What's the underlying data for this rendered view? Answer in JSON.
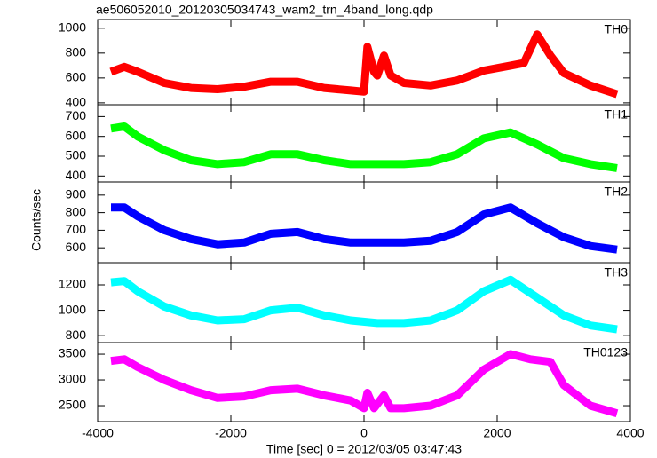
{
  "chart_data": [
    {
      "type": "line",
      "title": "ae506052010_20120305034743_wam2_trn_4band_long.qdp",
      "x": [
        -3800,
        -3600,
        -3400,
        -3000,
        -2600,
        -2200,
        -1800,
        -1400,
        -1000,
        -600,
        -200,
        0,
        50,
        150,
        200,
        300,
        400,
        600,
        1000,
        1400,
        1800,
        2200,
        2400,
        2600,
        2800,
        3000,
        3400,
        3800
      ],
      "series": [
        {
          "name": "TH0",
          "color": "#ff0000",
          "values": [
            650,
            690,
            650,
            560,
            520,
            510,
            530,
            570,
            570,
            520,
            500,
            490,
            850,
            650,
            620,
            780,
            620,
            560,
            540,
            580,
            660,
            700,
            720,
            950,
            780,
            640,
            540,
            470
          ]
        }
      ],
      "xlim": [
        -4000,
        4000
      ],
      "xticks": [
        -4000,
        -2000,
        0,
        2000,
        4000
      ],
      "ylim": [
        385,
        1070
      ],
      "yticks": [
        400,
        600,
        800,
        1000
      ]
    },
    {
      "type": "line",
      "x": [
        -3800,
        -3600,
        -3400,
        -3000,
        -2600,
        -2200,
        -1800,
        -1400,
        -1000,
        -600,
        -200,
        200,
        600,
        1000,
        1400,
        1800,
        2200,
        2600,
        3000,
        3400,
        3800
      ],
      "series": [
        {
          "name": "TH1",
          "color": "#00ff00",
          "values": [
            640,
            650,
            600,
            530,
            480,
            460,
            470,
            510,
            510,
            480,
            460,
            460,
            460,
            470,
            510,
            590,
            620,
            560,
            490,
            460,
            440
          ]
        }
      ],
      "xlim": [
        -4000,
        4000
      ],
      "xticks": [
        -4000,
        -2000,
        0,
        2000,
        4000
      ],
      "ylim": [
        370,
        760
      ],
      "yticks": [
        400,
        500,
        600,
        700
      ]
    },
    {
      "type": "line",
      "ylabel": "Counts/sec",
      "x": [
        -3800,
        -3600,
        -3400,
        -3000,
        -2600,
        -2200,
        -1800,
        -1400,
        -1000,
        -600,
        -200,
        200,
        600,
        1000,
        1400,
        1800,
        2200,
        2600,
        3000,
        3400,
        3800
      ],
      "series": [
        {
          "name": "TH2",
          "color": "#0000ff",
          "values": [
            830,
            830,
            780,
            700,
            650,
            620,
            630,
            680,
            690,
            650,
            630,
            630,
            630,
            640,
            690,
            790,
            830,
            740,
            660,
            610,
            590
          ]
        }
      ],
      "xlim": [
        -4000,
        4000
      ],
      "xticks": [
        -4000,
        -2000,
        0,
        2000,
        4000
      ],
      "ylim": [
        515,
        975
      ],
      "yticks": [
        600,
        700,
        800,
        900
      ]
    },
    {
      "type": "line",
      "x": [
        -3800,
        -3600,
        -3400,
        -3000,
        -2600,
        -2200,
        -1800,
        -1400,
        -1000,
        -600,
        -200,
        200,
        600,
        1000,
        1400,
        1800,
        2200,
        2600,
        3000,
        3400,
        3800
      ],
      "series": [
        {
          "name": "TH3",
          "color": "#00ffff",
          "values": [
            1220,
            1230,
            1150,
            1030,
            960,
            920,
            930,
            1000,
            1020,
            960,
            920,
            900,
            900,
            920,
            1000,
            1150,
            1240,
            1100,
            960,
            880,
            850
          ]
        }
      ],
      "xlim": [
        -4000,
        4000
      ],
      "xticks": [
        -4000,
        -2000,
        0,
        2000,
        4000
      ],
      "ylim": [
        745,
        1375
      ],
      "yticks": [
        800,
        1000,
        1200
      ]
    },
    {
      "type": "line",
      "xlabel": "Time [sec] 0 = 2012/03/05 03:47:43",
      "x": [
        -3800,
        -3600,
        -3400,
        -3000,
        -2600,
        -2200,
        -1800,
        -1400,
        -1000,
        -600,
        -200,
        0,
        50,
        150,
        300,
        400,
        600,
        1000,
        1400,
        1800,
        2200,
        2500,
        2800,
        3000,
        3400,
        3800
      ],
      "series": [
        {
          "name": "TH0123",
          "color": "#ff00ff",
          "values": [
            3370,
            3400,
            3250,
            3000,
            2800,
            2650,
            2680,
            2800,
            2830,
            2700,
            2600,
            2450,
            2750,
            2450,
            2700,
            2450,
            2450,
            2500,
            2700,
            3200,
            3500,
            3400,
            3350,
            2900,
            2500,
            2350
          ]
        }
      ],
      "xlim": [
        -4000,
        4000
      ],
      "xticks": [
        -4000,
        -2000,
        0,
        2000,
        4000
      ],
      "ylim": [
        2190,
        3725
      ],
      "yticks": [
        2500,
        3000,
        3500
      ]
    }
  ]
}
